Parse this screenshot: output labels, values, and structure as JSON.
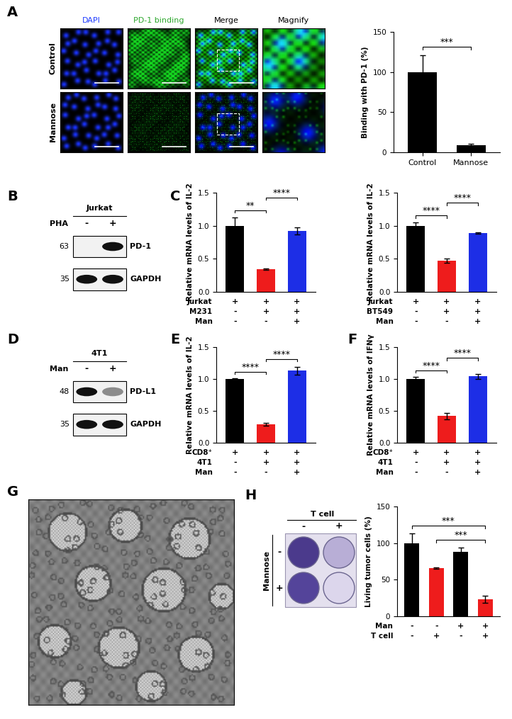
{
  "chart_data": [
    {
      "type": "bar",
      "ylabel": "Binding with PD-1 (%)",
      "categories": [
        "Control",
        "Mannose"
      ],
      "values": [
        100,
        9
      ],
      "errors": [
        21,
        2
      ],
      "colors": [
        "#000000",
        "#000000"
      ],
      "ylim": [
        0,
        150
      ],
      "yticks": [
        0,
        50,
        100,
        150
      ],
      "significance": [
        {
          "pair": [
            0,
            1
          ],
          "label": "***"
        }
      ]
    },
    {
      "type": "bar",
      "panel": "C",
      "ylabel": "Relative mRNA levels of IL-2",
      "values": [
        1.0,
        0.34,
        0.92
      ],
      "errors": [
        0.13,
        0.01,
        0.05
      ],
      "colors": [
        "#000000",
        "#ee1c1c",
        "#1d2ee6"
      ],
      "ylim": [
        0,
        1.5
      ],
      "yticks": [
        {
          "value": 0,
          "label": "0.0"
        },
        {
          "value": 0.5,
          "label": "0.5"
        },
        {
          "value": 1.0,
          "label": "1.0"
        },
        {
          "value": 1.5,
          "label": "1.5"
        }
      ],
      "tick_labels": "y",
      "significance": [
        {
          "pair": [
            0,
            1
          ],
          "label": "**"
        },
        {
          "pair": [
            1,
            2
          ],
          "label": "****"
        }
      ],
      "conditions": [
        {
          "name": "Jurkat",
          "values": [
            "+",
            "+",
            "+"
          ]
        },
        {
          "name": "M231",
          "values": [
            "-",
            "+",
            "+"
          ]
        },
        {
          "name": "Man",
          "values": [
            "-",
            "-",
            "+"
          ]
        }
      ]
    },
    {
      "type": "bar",
      "ylabel": "Relative mRNA levels of IL-2",
      "values": [
        1.0,
        0.47,
        0.89
      ],
      "errors": [
        0.05,
        0.03,
        0.01
      ],
      "colors": [
        "#000000",
        "#ee1c1c",
        "#1d2ee6"
      ],
      "ylim": [
        0,
        1.5
      ],
      "yticks": [
        {
          "value": 0,
          "label": "0.0"
        },
        {
          "value": 0.5,
          "label": "0.5"
        },
        {
          "value": 1.0,
          "label": "1.0"
        },
        {
          "value": 1.5,
          "label": "1.5"
        }
      ],
      "tick_labels": "y",
      "significance": [
        {
          "pair": [
            0,
            1
          ],
          "label": "****"
        },
        {
          "pair": [
            1,
            2
          ],
          "label": "****"
        }
      ],
      "conditions": [
        {
          "name": "Jurkat",
          "values": [
            "+",
            "+",
            "+"
          ]
        },
        {
          "name": "BT549",
          "values": [
            "-",
            "+",
            "+"
          ]
        },
        {
          "name": "Man",
          "values": [
            "-",
            "-",
            "+"
          ]
        }
      ]
    },
    {
      "type": "bar",
      "panel": "E",
      "ylabel": "Relative mRNA levels of IL-2",
      "values": [
        1.0,
        0.29,
        1.13
      ],
      "errors": [
        0.01,
        0.02,
        0.06
      ],
      "colors": [
        "#000000",
        "#ee1c1c",
        "#1d2ee6"
      ],
      "ylim": [
        0,
        1.5
      ],
      "yticks": [
        {
          "value": 0,
          "label": "0.0"
        },
        {
          "value": 0.5,
          "label": "0.5"
        },
        {
          "value": 1.0,
          "label": "1.0"
        },
        {
          "value": 1.5,
          "label": "1.5"
        }
      ],
      "tick_labels": "y",
      "significance": [
        {
          "pair": [
            0,
            1
          ],
          "label": "****"
        },
        {
          "pair": [
            1,
            2
          ],
          "label": "****"
        }
      ],
      "conditions": [
        {
          "name": "CD8⁺",
          "values": [
            "+",
            "+",
            "+"
          ]
        },
        {
          "name": "4T1",
          "values": [
            "-",
            "+",
            "+"
          ]
        },
        {
          "name": "Man",
          "values": [
            "-",
            "-",
            "+"
          ]
        }
      ]
    },
    {
      "type": "bar",
      "panel": "F",
      "ylabel": "Relative mRNA levels of IFNγ",
      "values": [
        1.0,
        0.42,
        1.04
      ],
      "errors": [
        0.03,
        0.05,
        0.04
      ],
      "colors": [
        "#000000",
        "#ee1c1c",
        "#1d2ee6"
      ],
      "ylim": [
        0,
        1.5
      ],
      "yticks": [
        {
          "value": 0,
          "label": "0.0"
        },
        {
          "value": 0.5,
          "label": "0.5"
        },
        {
          "value": 1.0,
          "label": "1.0"
        },
        {
          "value": 1.5,
          "label": "1.5"
        }
      ],
      "tick_labels": "y",
      "significance": [
        {
          "pair": [
            0,
            1
          ],
          "label": "****"
        },
        {
          "pair": [
            1,
            2
          ],
          "label": "****"
        }
      ],
      "conditions": [
        {
          "name": "CD8⁺",
          "values": [
            "+",
            "+",
            "+"
          ]
        },
        {
          "name": "4T1",
          "values": [
            "-",
            "+",
            "+"
          ]
        },
        {
          "name": "Man",
          "values": [
            "-",
            "-",
            "+"
          ]
        }
      ]
    },
    {
      "type": "bar",
      "ylabel": "Living tumor cells (%)",
      "values": [
        100,
        66,
        88,
        23
      ],
      "errors": [
        13,
        1,
        6,
        5
      ],
      "colors": [
        "#000000",
        "#ee1c1c",
        "#000000",
        "#ee1c1c"
      ],
      "ylim": [
        0,
        150
      ],
      "yticks": [
        0,
        50,
        100,
        150
      ],
      "tick_labels": "y",
      "significance": [
        {
          "pair": [
            1,
            3
          ],
          "label": "***"
        },
        {
          "pair": [
            0,
            3
          ],
          "label": "***"
        }
      ],
      "conditions": [
        {
          "name": "Man",
          "values": [
            "-",
            "-",
            "+",
            "+"
          ]
        },
        {
          "name": "T cell",
          "values": [
            "-",
            "+",
            "-",
            "+"
          ]
        }
      ]
    }
  ],
  "microscopy": {
    "panel": "A",
    "columns": [
      "DAPI",
      "PD-1 binding",
      "Merge",
      "Magnify"
    ],
    "colors": [
      "#1f3bff",
      "#2ea82e",
      "#000000",
      "#000000"
    ],
    "rows": [
      "Control",
      "Mannose"
    ]
  },
  "blots": [
    {
      "panel": "B",
      "title": "Jurkat",
      "treatment": "PHA",
      "lanes": [
        "-",
        "+"
      ],
      "rows": [
        {
          "name": "PD-1",
          "marker": 63,
          "band_intensity": [
            0.0,
            1.0
          ]
        },
        {
          "name": "GAPDH",
          "marker": 35,
          "band_intensity": [
            1.0,
            1.0
          ]
        }
      ]
    },
    {
      "panel": "D",
      "title": "4T1",
      "treatment": "Man",
      "lanes": [
        "-",
        "+"
      ],
      "rows": [
        {
          "name": "PD-L1",
          "marker": 48,
          "band_intensity": [
            1.0,
            0.45
          ]
        },
        {
          "name": "GAPDH",
          "marker": 35,
          "band_intensity": [
            1.0,
            1.0
          ]
        }
      ]
    }
  ],
  "micrograph": {
    "panel": "G"
  },
  "wells": {
    "panel": "H",
    "column_header": "T cell",
    "columns": [
      "-",
      "+"
    ],
    "row_header": "Mannose",
    "rows": [
      "-",
      "+"
    ]
  }
}
